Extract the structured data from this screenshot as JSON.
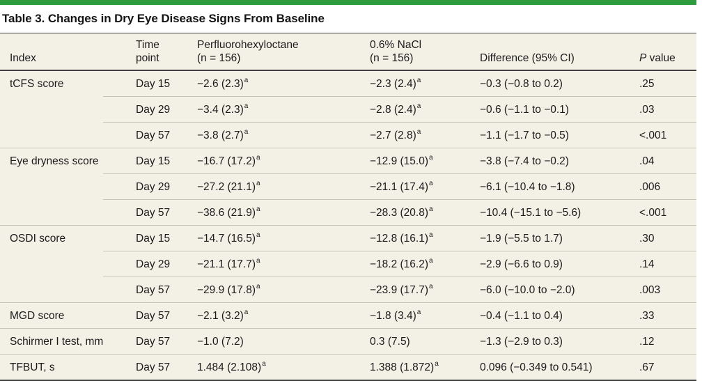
{
  "title": "Table 3. Changes in Dry Eye Disease Signs From Baseline",
  "colors": {
    "accent_green": "#2e9b3f",
    "table_background": "#f3f0e6",
    "rule_dark": "#404040",
    "rule_light": "#c9c5b6",
    "text": "#1b1b1b"
  },
  "table": {
    "header": {
      "index": "Index",
      "time": {
        "line1": "Time",
        "line2": "point"
      },
      "pfho": {
        "line1": "Perfluorohexyloctane",
        "line2": "(n = 156)"
      },
      "nacl": {
        "line1": "0.6% NaCl",
        "line2": "(n = 156)"
      },
      "diff": "Difference (95% CI)",
      "p": {
        "italic": "P",
        "rest": " value"
      }
    },
    "groups": [
      {
        "index": "tCFS score",
        "rows": [
          {
            "time": "Day 15",
            "pfho": "−2.6 (2.3)",
            "pfho_sup": "a",
            "nacl": "−2.3 (2.4)",
            "nacl_sup": "a",
            "diff": "−0.3 (−0.8 to 0.2)",
            "p": ".25"
          },
          {
            "time": "Day 29",
            "pfho": "−3.4 (2.3)",
            "pfho_sup": "a",
            "nacl": "−2.8 (2.4)",
            "nacl_sup": "a",
            "diff": "−0.6 (−1.1 to −0.1)",
            "p": ".03"
          },
          {
            "time": "Day 57",
            "pfho": "−3.8 (2.7)",
            "pfho_sup": "a",
            "nacl": "−2.7 (2.8)",
            "nacl_sup": "a",
            "diff": "−1.1 (−1.7 to −0.5)",
            "p": "<.001"
          }
        ]
      },
      {
        "index": "Eye dryness score",
        "rows": [
          {
            "time": "Day 15",
            "pfho": "−16.7 (17.2)",
            "pfho_sup": "a",
            "nacl": "−12.9 (15.0)",
            "nacl_sup": "a",
            "diff": "−3.8 (−7.4 to −0.2)",
            "p": ".04"
          },
          {
            "time": "Day 29",
            "pfho": "−27.2 (21.1)",
            "pfho_sup": "a",
            "nacl": "−21.1 (17.4)",
            "nacl_sup": "a",
            "diff": "−6.1 (−10.4 to −1.8)",
            "p": ".006"
          },
          {
            "time": "Day 57",
            "pfho": "−38.6 (21.9)",
            "pfho_sup": "a",
            "nacl": "−28.3 (20.8)",
            "nacl_sup": "a",
            "diff": "−10.4 (−15.1 to −5.6)",
            "p": "<.001"
          }
        ]
      },
      {
        "index": "OSDI score",
        "rows": [
          {
            "time": "Day 15",
            "pfho": "−14.7 (16.5)",
            "pfho_sup": "a",
            "nacl": "−12.8 (16.1)",
            "nacl_sup": "a",
            "diff": "−1.9 (−5.5 to 1.7)",
            "p": ".30"
          },
          {
            "time": "Day 29",
            "pfho": "−21.1 (17.7)",
            "pfho_sup": "a",
            "nacl": "−18.2 (16.2)",
            "nacl_sup": "a",
            "diff": "−2.9 (−6.6 to 0.9)",
            "p": ".14"
          },
          {
            "time": "Day 57",
            "pfho": "−29.9 (17.8)",
            "pfho_sup": "a",
            "nacl": "−23.9 (17.7)",
            "nacl_sup": "a",
            "diff": "−6.0 (−10.0 to −2.0)",
            "p": ".003"
          }
        ]
      },
      {
        "index": "MGD score",
        "rows": [
          {
            "time": "Day 57",
            "pfho": "−2.1 (3.2)",
            "pfho_sup": "a",
            "nacl": "−1.8 (3.4)",
            "nacl_sup": "a",
            "diff": "−0.4 (−1.1 to 0.4)",
            "p": ".33"
          }
        ]
      },
      {
        "index": "Schirmer I test, mm",
        "rows": [
          {
            "time": "Day 57",
            "pfho": "−1.0 (7.2)",
            "pfho_sup": "",
            "nacl": "0.3 (7.5)",
            "nacl_sup": "",
            "diff": "−1.3 (−2.9 to 0.3)",
            "p": ".12"
          }
        ]
      },
      {
        "index": "TFBUT, s",
        "rows": [
          {
            "time": "Day 57",
            "pfho": "1.484 (2.108)",
            "pfho_sup": "a",
            "nacl": "1.388 (1.872)",
            "nacl_sup": "a",
            "diff": "0.096 (−0.349 to 0.541)",
            "p": ".67"
          }
        ]
      }
    ]
  }
}
